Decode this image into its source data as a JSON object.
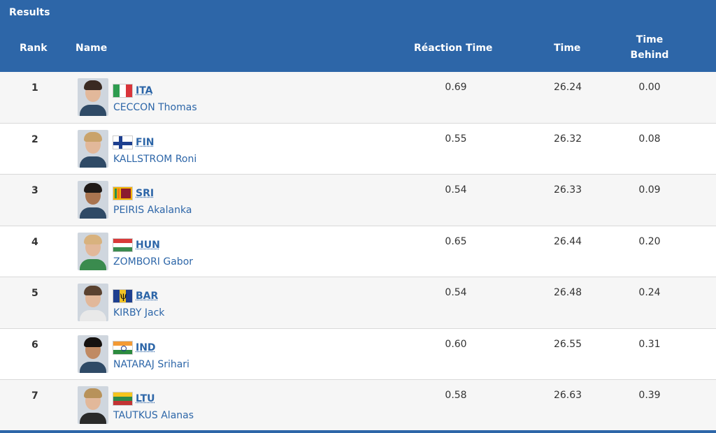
{
  "header": {
    "title": "Results",
    "columns": {
      "rank": "Rank",
      "name": "Name",
      "reaction": "Réaction Time",
      "time": "Time",
      "behind": "Time Behind"
    }
  },
  "rows": [
    {
      "rank": "1",
      "code": "ITA",
      "flag": "flag-italy-icon",
      "name": "CECCON Thomas",
      "reaction": "0.69",
      "time": "26.24",
      "behind": "0.00"
    },
    {
      "rank": "2",
      "code": "FIN",
      "flag": "flag-finland-icon",
      "name": "KALLSTROM Roni",
      "reaction": "0.55",
      "time": "26.32",
      "behind": "0.08"
    },
    {
      "rank": "3",
      "code": "SRI",
      "flag": "flag-sri-lanka-icon",
      "name": "PEIRIS Akalanka",
      "reaction": "0.54",
      "time": "26.33",
      "behind": "0.09"
    },
    {
      "rank": "4",
      "code": "HUN",
      "flag": "flag-hungary-icon",
      "name": "ZOMBORI Gabor",
      "reaction": "0.65",
      "time": "26.44",
      "behind": "0.20"
    },
    {
      "rank": "5",
      "code": "BAR",
      "flag": "flag-barbados-icon",
      "name": "KIRBY Jack",
      "reaction": "0.54",
      "time": "26.48",
      "behind": "0.24"
    },
    {
      "rank": "6",
      "code": "IND",
      "flag": "flag-india-icon",
      "name": "NATARAJ Srihari",
      "reaction": "0.60",
      "time": "26.55",
      "behind": "0.31"
    },
    {
      "rank": "7",
      "code": "LTU",
      "flag": "flag-lithuania-icon",
      "name": "TAUTKUS Alanas",
      "reaction": "0.58",
      "time": "26.63",
      "behind": "0.39"
    }
  ],
  "colors": {
    "header_bg": "#2d66a8",
    "link": "#2d66a8"
  }
}
